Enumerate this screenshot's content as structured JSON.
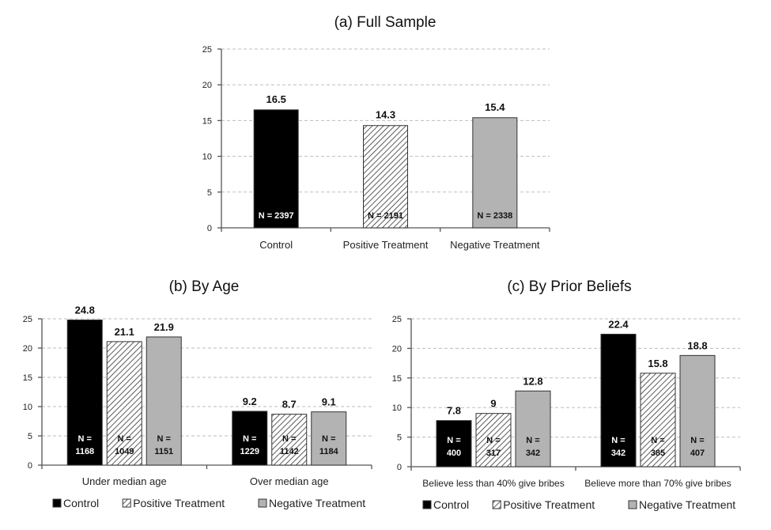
{
  "chart_data": [
    {
      "type": "bar",
      "title": "(a) Full Sample",
      "xlabel": "",
      "ylabel": "",
      "ylim": [
        0,
        25
      ],
      "yticks": [
        0,
        5,
        10,
        15,
        20,
        25
      ],
      "grid": true,
      "categories": [
        "Control",
        "Positive Treatment",
        "Negative Treatment"
      ],
      "values": [
        16.5,
        14.3,
        15.4
      ],
      "value_labels": [
        "16.5",
        "14.3",
        "15.4"
      ],
      "n_labels": [
        "N = 2397",
        "N = 2191",
        "N = 2338"
      ]
    },
    {
      "type": "bar",
      "title": "(b) By Age",
      "xlabel": "",
      "ylabel": "",
      "ylim": [
        0,
        25
      ],
      "yticks": [
        0,
        5,
        10,
        15,
        20,
        25
      ],
      "grid": true,
      "categories": [
        "Under median age",
        "Over median age"
      ],
      "series": [
        {
          "name": "Control",
          "values": [
            24.8,
            9.2
          ],
          "value_labels": [
            "24.8",
            "9.2"
          ],
          "n": [
            "1168",
            "1229"
          ]
        },
        {
          "name": "Positive Treatment",
          "values": [
            21.1,
            8.7
          ],
          "value_labels": [
            "21.1",
            "8.7"
          ],
          "n": [
            "1049",
            "1142"
          ]
        },
        {
          "name": "Negative Treatment",
          "values": [
            21.9,
            9.1
          ],
          "value_labels": [
            "21.9",
            "9.1"
          ],
          "n": [
            "1151",
            "1184"
          ]
        }
      ],
      "legend": "bottom"
    },
    {
      "type": "bar",
      "title": "(c) By Prior Beliefs",
      "xlabel": "",
      "ylabel": "",
      "ylim": [
        0,
        25
      ],
      "yticks": [
        0,
        5,
        10,
        15,
        20,
        25
      ],
      "grid": true,
      "categories": [
        "Believe less than 40% give bribes",
        "Believe more than 70% give bribes"
      ],
      "series": [
        {
          "name": "Control",
          "values": [
            7.8,
            22.4
          ],
          "value_labels": [
            "7.8",
            "22.4"
          ],
          "n": [
            "400",
            "342"
          ]
        },
        {
          "name": "Positive Treatment",
          "values": [
            9,
            15.8
          ],
          "value_labels": [
            "9",
            "15.8"
          ],
          "n": [
            "317",
            "385"
          ]
        },
        {
          "name": "Negative Treatment",
          "values": [
            12.8,
            18.8
          ],
          "value_labels": [
            "12.8",
            "18.8"
          ],
          "n": [
            "342",
            "407"
          ]
        }
      ],
      "legend": "bottom"
    }
  ],
  "n_prefix": "N =",
  "legend_items": [
    "Control",
    "Positive Treatment",
    "Negative Treatment"
  ],
  "colors": {
    "control": "#000000",
    "positive": "hatched",
    "negative": "#b3b3b3"
  }
}
